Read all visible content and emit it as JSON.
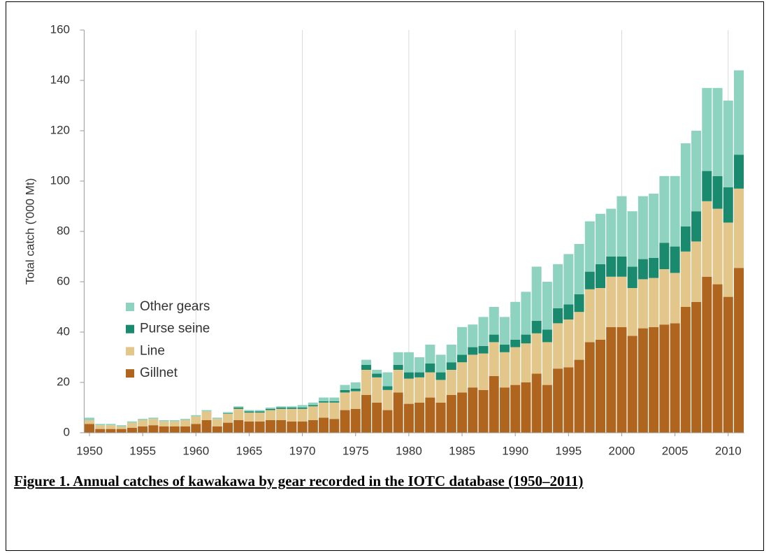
{
  "chart_data": {
    "type": "stacked_bar",
    "y_label": "Total catch ('000 Mt)",
    "caption": "Figure 1. Annual catches of kawakawa by gear recorded in the IOTC database (1950–2011)",
    "x": [
      1950,
      1951,
      1952,
      1953,
      1954,
      1955,
      1956,
      1957,
      1958,
      1959,
      1960,
      1961,
      1962,
      1963,
      1964,
      1965,
      1966,
      1967,
      1968,
      1969,
      1970,
      1971,
      1972,
      1973,
      1974,
      1975,
      1976,
      1977,
      1978,
      1979,
      1980,
      1981,
      1982,
      1983,
      1984,
      1985,
      1986,
      1987,
      1988,
      1989,
      1990,
      1991,
      1992,
      1993,
      1994,
      1995,
      1996,
      1997,
      1998,
      1999,
      2000,
      2001,
      2002,
      2003,
      2004,
      2005,
      2006,
      2007,
      2008,
      2009,
      2010,
      2011
    ],
    "series": [
      {
        "name": "Gillnet",
        "color": "#b0651e",
        "values": [
          3.5,
          1.5,
          1.5,
          1.5,
          2,
          2.5,
          3,
          2.5,
          2.5,
          2.5,
          3.5,
          5,
          2.5,
          4,
          5,
          4.5,
          4.5,
          5,
          5,
          4.5,
          4.5,
          5,
          6,
          5.5,
          9,
          9.5,
          15,
          12,
          9,
          16,
          11.5,
          12,
          14,
          12,
          15,
          16,
          18,
          17,
          22.5,
          18,
          19,
          20,
          23.5,
          19,
          25.5,
          26,
          29,
          36,
          37,
          42,
          42,
          38.5,
          41.5,
          42,
          43,
          43.5,
          50,
          52,
          62,
          59,
          54,
          65.5
        ]
      },
      {
        "name": "Line",
        "color": "#e3c68a",
        "values": [
          1.5,
          1.5,
          1.5,
          1,
          2,
          2.5,
          2.5,
          2,
          2,
          2.5,
          3,
          3.5,
          3,
          3.5,
          4.5,
          3.5,
          3.5,
          4,
          4.5,
          5,
          5,
          5.5,
          6,
          6.5,
          7,
          7,
          10,
          10,
          8,
          9,
          10,
          10,
          10,
          9,
          10,
          12,
          13,
          14.5,
          13.5,
          14,
          15,
          15.5,
          16,
          17,
          18,
          19,
          19,
          21,
          20.5,
          20,
          20,
          19,
          19.5,
          19.5,
          22,
          20,
          22,
          24,
          30,
          30,
          29.5,
          31.5
        ]
      },
      {
        "name": "Purse seine",
        "color": "#1a8a6e",
        "values": [
          0,
          0,
          0,
          0,
          0,
          0,
          0,
          0,
          0,
          0,
          0,
          0,
          0,
          0.2,
          0.5,
          0.5,
          0.5,
          0.5,
          0.5,
          0.5,
          0.5,
          0.5,
          0.5,
          0.5,
          1,
          1,
          2,
          1.5,
          1.5,
          2,
          2.5,
          2,
          3.5,
          3,
          3,
          3,
          3,
          3,
          3,
          3,
          3,
          3.5,
          5,
          5,
          6,
          6,
          7,
          7,
          9.5,
          8,
          8,
          8.5,
          8,
          8,
          10.5,
          10.5,
          10,
          12,
          12,
          13,
          14,
          13.5
        ]
      },
      {
        "name": "Other gears",
        "color": "#8dd3c0",
        "values": [
          1,
          0.5,
          0.5,
          0.5,
          0.5,
          0.5,
          0.5,
          0.5,
          0.5,
          0.5,
          0.5,
          0.5,
          0.5,
          0.5,
          0.5,
          0.5,
          0.5,
          0.5,
          0.5,
          0.5,
          1,
          1,
          1.5,
          1.5,
          2,
          2.5,
          2,
          1.5,
          5.5,
          5,
          8,
          6,
          7.5,
          7,
          7,
          11,
          9,
          11.5,
          11,
          11,
          15,
          17,
          21.5,
          19,
          17.5,
          20,
          20,
          20,
          20,
          19,
          24,
          22,
          25,
          25.5,
          26.5,
          28,
          33,
          32,
          33,
          35,
          34.5,
          33.5
        ]
      }
    ],
    "xlim": [
      1949.5,
      2011.5
    ],
    "xticks": [
      1950,
      1955,
      1960,
      1965,
      1970,
      1975,
      1980,
      1985,
      1990,
      1995,
      2000,
      2005,
      2010
    ],
    "x_gridlines": [
      1960,
      1970,
      1980,
      1990,
      2000,
      2010
    ],
    "ylim": [
      0,
      160
    ],
    "yticks": [
      0,
      20,
      40,
      60,
      80,
      100,
      120,
      140,
      160
    ],
    "legend": "center-left"
  }
}
